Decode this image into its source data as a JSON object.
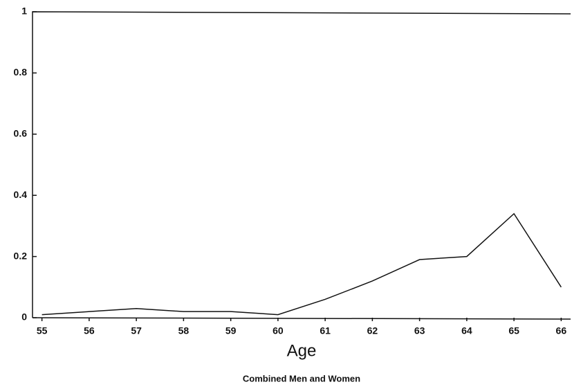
{
  "chart_data": {
    "type": "line",
    "x_label": "Age",
    "subtitle": "Combined Men and Women",
    "x": [
      55,
      56,
      57,
      58,
      59,
      60,
      61,
      62,
      63,
      64,
      65,
      66
    ],
    "series": [
      {
        "color": "#111111",
        "values": [
          0.01,
          0.02,
          0.03,
          0.02,
          0.02,
          0.01,
          0.06,
          0.12,
          0.19,
          0.2,
          0.34,
          0.1
        ]
      }
    ],
    "xlim": [
      54.8,
      66.2
    ],
    "xticks": [
      55,
      56,
      57,
      58,
      59,
      60,
      61,
      62,
      63,
      64,
      65,
      66
    ],
    "ylim": [
      0,
      1
    ],
    "yticks": [
      0,
      0.2,
      0.4,
      0.6,
      0.8,
      1
    ]
  }
}
